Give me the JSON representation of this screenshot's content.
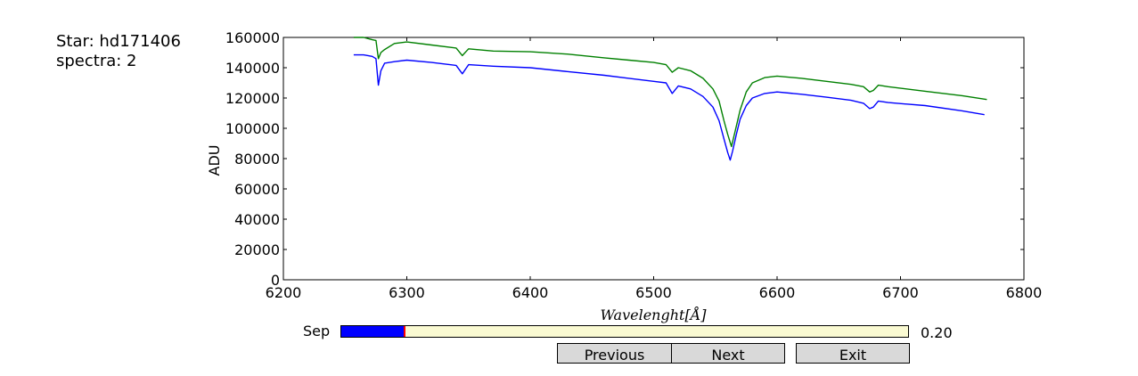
{
  "info": {
    "star_line": "Star: hd171406",
    "spectra_line": "spectra: 2"
  },
  "chart_data": {
    "type": "line",
    "title": "",
    "xlabel": "Wavelenght[Å]",
    "ylabel": "ADU",
    "xlim": [
      6200,
      6800
    ],
    "ylim": [
      0,
      160000
    ],
    "xticks": [
      "6200",
      "6300",
      "6400",
      "6500",
      "6600",
      "6700",
      "6800"
    ],
    "yticks": [
      "0",
      "20000",
      "40000",
      "60000",
      "80000",
      "100000",
      "120000",
      "140000",
      "160000"
    ],
    "grid": false,
    "legend": "none",
    "series": [
      {
        "color": "#008000",
        "x": [
          6257,
          6265,
          6272,
          6275,
          6277,
          6279,
          6282,
          6290,
          6300,
          6320,
          6340,
          6345,
          6350,
          6370,
          6400,
          6430,
          6460,
          6480,
          6500,
          6510,
          6515,
          6520,
          6530,
          6540,
          6548,
          6553,
          6557,
          6560,
          6563,
          6566,
          6570,
          6575,
          6580,
          6590,
          6600,
          6620,
          6640,
          6660,
          6670,
          6675,
          6678,
          6682,
          6690,
          6720,
          6750,
          6770
        ],
        "y": [
          160000,
          160000,
          158500,
          158000,
          146000,
          150000,
          152000,
          156000,
          157000,
          155000,
          153000,
          148000,
          152500,
          151000,
          150500,
          149000,
          146500,
          145000,
          143500,
          142000,
          137000,
          140000,
          138000,
          133000,
          126000,
          118000,
          105000,
          96000,
          88000,
          98000,
          112000,
          124000,
          130000,
          133500,
          134500,
          133000,
          131000,
          129000,
          127500,
          124000,
          125000,
          128500,
          127500,
          124500,
          121500,
          119000
        ]
      },
      {
        "color": "#0000ff",
        "x": [
          6257,
          6265,
          6272,
          6275,
          6277,
          6279,
          6282,
          6290,
          6300,
          6320,
          6340,
          6345,
          6350,
          6370,
          6400,
          6430,
          6460,
          6480,
          6500,
          6510,
          6515,
          6520,
          6530,
          6540,
          6548,
          6553,
          6557,
          6560,
          6562,
          6564,
          6567,
          6570,
          6575,
          6580,
          6590,
          6600,
          6620,
          6640,
          6660,
          6670,
          6675,
          6678,
          6682,
          6690,
          6720,
          6750,
          6768
        ],
        "y": [
          148500,
          148500,
          147500,
          146000,
          128500,
          138000,
          143000,
          144000,
          145000,
          143500,
          141500,
          136000,
          142000,
          141000,
          140000,
          137500,
          135000,
          133000,
          131000,
          130000,
          123000,
          128000,
          126000,
          121000,
          114000,
          105000,
          93000,
          84000,
          79000,
          85000,
          96000,
          106000,
          115000,
          120000,
          123000,
          124000,
          122500,
          120500,
          118500,
          116500,
          113000,
          114000,
          118000,
          117000,
          115000,
          111500,
          109000
        ]
      }
    ]
  },
  "slider": {
    "label": "Sep",
    "value_text": "0.20",
    "fraction": 0.112,
    "fill_color": "#0000ff",
    "marker_color": "#ff0000",
    "track_color": "#fafad2"
  },
  "buttons": {
    "previous": "Previous",
    "next": "Next",
    "exit": "Exit"
  }
}
